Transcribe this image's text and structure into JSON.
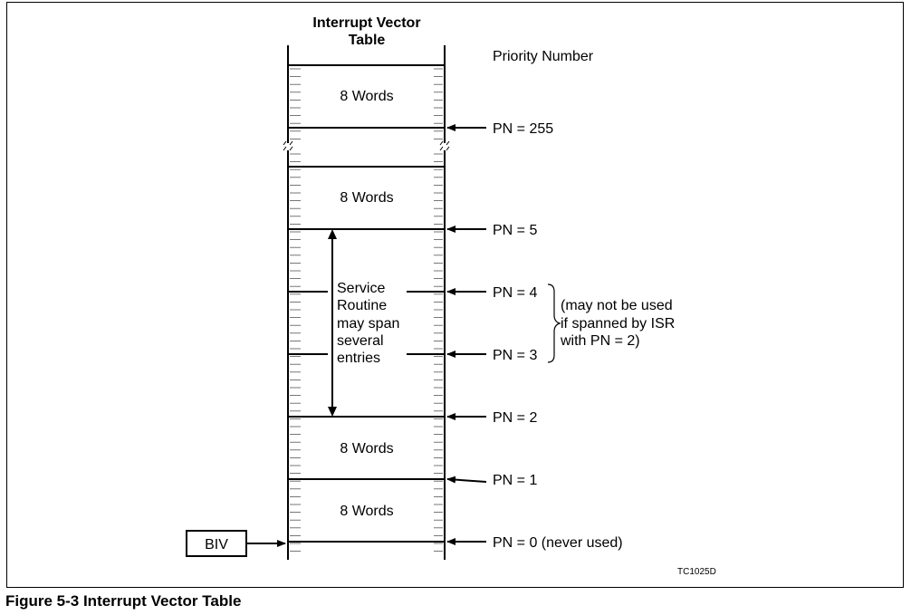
{
  "table_title_line1": "Interrupt Vector",
  "table_title_line2": "Table",
  "priority_header": "Priority Number",
  "entry_label": "8 Words",
  "isr_text": [
    "Service",
    "Routine",
    "may span",
    "several",
    "entries"
  ],
  "pn_labels": {
    "pn255": "PN = 255",
    "pn5": "PN = 5",
    "pn4": "PN = 4",
    "pn3": "PN = 3",
    "pn2": "PN = 2",
    "pn1": "PN = 1",
    "pn0": "PN = 0 (never used)"
  },
  "note_lines": [
    "(may not be used",
    "if spanned by ISR",
    "with PN = 2)"
  ],
  "biv_label": "BIV",
  "figure_id": "TC1025D",
  "caption": "Figure 5-3   Interrupt Vector Table"
}
